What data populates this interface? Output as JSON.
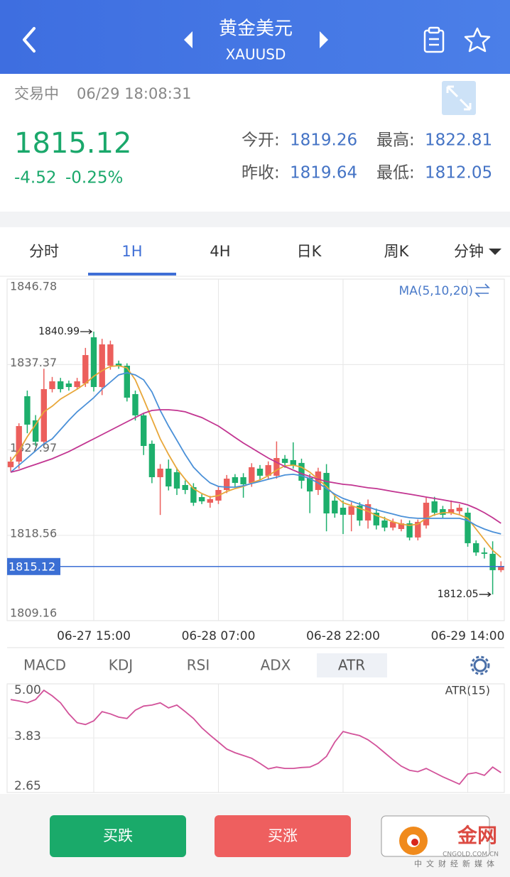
{
  "header": {
    "title": "黄金美元",
    "symbol": "XAUUSD"
  },
  "status": {
    "state": "交易中",
    "time": "06/29 18:08:31"
  },
  "quote": {
    "last": 1815.12,
    "change": -4.52,
    "change_pct": "-0.25%",
    "stats": [
      {
        "label": "今开:",
        "value": 1819.26
      },
      {
        "label": "最高:",
        "value": 1822.81
      },
      {
        "label": "昨收:",
        "value": 1819.64
      },
      {
        "label": "最低:",
        "value": 1812.05
      }
    ]
  },
  "tabs": {
    "items": [
      "分时",
      "1H",
      "4H",
      "日K",
      "周K",
      "分钟"
    ],
    "active": 1
  },
  "indicators": {
    "items": [
      "MACD",
      "KDJ",
      "RSI",
      "ADX",
      "ATR"
    ],
    "active": 4
  },
  "buttons": [
    "买跌",
    "买涨"
  ],
  "watermark": {
    "brand": "金网",
    "domain": "CNGOLD.COM.CN",
    "slogan": "中文财经新媒体"
  },
  "chart_data": [
    {
      "type": "candlestick",
      "ma_label": "MA(5,10,20)",
      "categories": [
        null,
        null,
        null,
        null,
        null,
        null,
        null,
        null,
        null,
        null,
        "06-27 15:00",
        null,
        null,
        null,
        null,
        null,
        null,
        null,
        null,
        null,
        null,
        null,
        null,
        null,
        null,
        "06-28 07:00",
        null,
        null,
        null,
        null,
        null,
        null,
        null,
        null,
        null,
        null,
        null,
        null,
        null,
        null,
        "06-28 22:00",
        null,
        null,
        null,
        null,
        null,
        null,
        null,
        null,
        null,
        null,
        null,
        null,
        null,
        null,
        "06-29 14:00",
        null,
        null,
        null,
        null
      ],
      "open": [
        1826.06,
        1826.68,
        1833.88,
        1831.22,
        1828.87,
        1834.66,
        1835.52,
        1835.28,
        1834.89,
        1835.28,
        1840.37,
        1834.89,
        1837.24,
        1837.47,
        1837.24,
        1834.11,
        1831.77,
        1828.64,
        1824.96,
        1825.9,
        1825.51,
        1824.1,
        1823.86,
        1822.77,
        1822.15,
        1822.38,
        1823.55,
        1824.96,
        1824.96,
        1824.33,
        1825.9,
        1825.12,
        1825.12,
        1826.99,
        1826.84,
        1826.53,
        1824.88,
        1823.55,
        1825.43,
        1822.38,
        1821.6,
        1820.82,
        1821.83,
        1820.19,
        1821.05,
        1820.19,
        1819.41,
        1819.25,
        1819.88,
        1818.32,
        1819.65,
        1822.3,
        1821.44,
        1821.05,
        1821.21,
        1821.05,
        1817.69,
        1816.67,
        1816.52,
        1814.72
      ],
      "high": [
        1827.2,
        1830.9,
        1834.5,
        1831.8,
        1836.9,
        1836.0,
        1835.9,
        1835.6,
        1835.9,
        1839.2,
        1840.99,
        1840.2,
        1840.0,
        1837.8,
        1837.5,
        1834.5,
        1832.0,
        1829.0,
        1826.4,
        1826.9,
        1826.0,
        1824.6,
        1824.3,
        1823.1,
        1822.9,
        1823.9,
        1825.2,
        1825.3,
        1825.4,
        1826.5,
        1826.3,
        1826.7,
        1828.9,
        1827.4,
        1828.8,
        1827.0,
        1825.3,
        1826.0,
        1826.4,
        1823.0,
        1822.4,
        1822.2,
        1822.2,
        1822.5,
        1821.5,
        1820.6,
        1820.4,
        1820.3,
        1820.2,
        1820.3,
        1822.7,
        1822.8,
        1821.8,
        1822.4,
        1822.0,
        1821.6,
        1818.0,
        1817.2,
        1817.9,
        1815.7
      ],
      "low": [
        1825.6,
        1825.9,
        1829.8,
        1828.4,
        1828.6,
        1834.3,
        1834.3,
        1834.5,
        1834.6,
        1834.9,
        1834.4,
        1834.0,
        1836.8,
        1836.9,
        1833.3,
        1831.2,
        1827.4,
        1824.3,
        1820.8,
        1823.5,
        1823.0,
        1823.1,
        1821.8,
        1822.0,
        1821.6,
        1822.0,
        1823.2,
        1823.9,
        1822.7,
        1823.9,
        1824.7,
        1824.8,
        1824.8,
        1826.0,
        1825.9,
        1823.7,
        1821.0,
        1823.0,
        1819.0,
        1820.5,
        1818.7,
        1819.0,
        1819.6,
        1819.3,
        1819.2,
        1819.0,
        1819.1,
        1819.0,
        1818.0,
        1818.0,
        1819.3,
        1820.7,
        1820.5,
        1820.8,
        1820.9,
        1817.3,
        1816.3,
        1816.0,
        1812.05,
        1814.5
      ],
      "close": [
        1826.68,
        1830.59,
        1830.75,
        1828.87,
        1834.66,
        1835.52,
        1834.66,
        1834.89,
        1835.52,
        1838.41,
        1834.89,
        1839.59,
        1839.59,
        1837.16,
        1833.72,
        1831.77,
        1828.4,
        1824.96,
        1825.9,
        1823.94,
        1823.71,
        1823.55,
        1822.15,
        1822.3,
        1822.54,
        1823.55,
        1824.8,
        1824.33,
        1824.18,
        1826.06,
        1825.12,
        1826.29,
        1827.07,
        1826.53,
        1826.29,
        1824.57,
        1823.39,
        1825.59,
        1820.97,
        1820.97,
        1820.82,
        1821.76,
        1820.19,
        1821.99,
        1819.65,
        1819.41,
        1820.04,
        1819.88,
        1818.32,
        1820.04,
        1822.15,
        1821.05,
        1820.82,
        1821.44,
        1821.6,
        1817.69,
        1816.67,
        1816.52,
        1814.72,
        1815.12
      ],
      "up_color": "#ec5f5c",
      "down_color": "#1daf6c",
      "price_line_color": "#3b6fd4",
      "series": [
        {
          "color": "#e8a73a",
          "values": [
            1826.68,
            1827.86,
            1829.42,
            1830.75,
            1832.16,
            1832.78,
            1833.56,
            1834.11,
            1834.66,
            1835.28,
            1836.07,
            1836.69,
            1837.16,
            1837.24,
            1837.0,
            1835.68,
            1833.56,
            1831.37,
            1829.18,
            1827.46,
            1825.9,
            1824.73,
            1823.71,
            1823.16,
            1822.77,
            1822.93,
            1823.39,
            1823.71,
            1823.94,
            1824.33,
            1824.65,
            1825.12,
            1825.74,
            1826.21,
            1826.29,
            1826.06,
            1825.51,
            1824.73,
            1823.94,
            1822.93,
            1822.15,
            1821.83,
            1821.52,
            1821.21,
            1820.74,
            1820.43,
            1820.04,
            1819.8,
            1819.65,
            1819.8,
            1820.43,
            1820.82,
            1821.05,
            1821.05,
            1820.82,
            1820.43,
            1819.25,
            1818.08,
            1816.91,
            1816.13
          ]
        },
        {
          "color": "#4a90d8",
          "values": [
            1825.51,
            1826.29,
            1827.07,
            1827.86,
            1828.64,
            1829.18,
            1830.2,
            1831.22,
            1832.16,
            1832.94,
            1833.72,
            1834.66,
            1835.44,
            1836.22,
            1836.46,
            1836.22,
            1835.68,
            1834.35,
            1832.31,
            1830.59,
            1829.03,
            1827.46,
            1826.06,
            1825.12,
            1824.33,
            1823.94,
            1823.86,
            1823.86,
            1824.02,
            1824.26,
            1824.49,
            1824.73,
            1824.96,
            1825.2,
            1825.28,
            1825.12,
            1824.8,
            1824.33,
            1823.71,
            1823.09,
            1822.62,
            1822.3,
            1821.99,
            1821.68,
            1821.37,
            1821.13,
            1820.9,
            1820.66,
            1820.5,
            1820.43,
            1820.43,
            1820.43,
            1820.43,
            1820.43,
            1820.43,
            1820.19,
            1819.65,
            1819.25,
            1818.94,
            1818.71
          ]
        },
        {
          "color": "#c23591",
          "values": [
            1825.51,
            1825.74,
            1826.06,
            1826.37,
            1826.68,
            1826.99,
            1827.39,
            1827.78,
            1828.25,
            1828.72,
            1829.18,
            1829.65,
            1830.12,
            1830.59,
            1831.06,
            1831.53,
            1832.0,
            1832.31,
            1832.39,
            1832.39,
            1832.31,
            1832.16,
            1831.84,
            1831.53,
            1831.06,
            1830.59,
            1829.97,
            1829.34,
            1828.72,
            1828.17,
            1827.62,
            1827.07,
            1826.6,
            1826.14,
            1825.74,
            1825.35,
            1825.04,
            1824.73,
            1824.49,
            1824.33,
            1824.18,
            1824.1,
            1823.94,
            1823.79,
            1823.71,
            1823.55,
            1823.39,
            1823.24,
            1823.09,
            1822.93,
            1822.77,
            1822.62,
            1822.46,
            1822.3,
            1822.15,
            1821.91,
            1821.52,
            1821.05,
            1820.5,
            1819.88
          ]
        }
      ],
      "ylim": [
        1809.16,
        1846.78
      ],
      "yticks": [
        1846.78,
        1837.37,
        1827.97,
        1818.56,
        1809.16
      ],
      "grid": true
    },
    {
      "type": "line",
      "label": "ATR(15)",
      "series": [
        {
          "color": "#d2529a",
          "values": [
            4.66,
            4.63,
            4.59,
            4.66,
            4.86,
            4.74,
            4.59,
            4.35,
            4.16,
            4.12,
            4.2,
            4.4,
            4.35,
            4.28,
            4.25,
            4.43,
            4.52,
            4.54,
            4.59,
            4.48,
            4.54,
            4.4,
            4.25,
            4.05,
            3.89,
            3.74,
            3.59,
            3.51,
            3.45,
            3.39,
            3.28,
            3.16,
            3.2,
            3.17,
            3.17,
            3.19,
            3.2,
            3.28,
            3.43,
            3.74,
            3.97,
            3.92,
            3.88,
            3.79,
            3.66,
            3.51,
            3.36,
            3.22,
            3.13,
            3.1,
            3.17,
            3.08,
            2.99,
            2.91,
            2.83,
            3.05,
            3.08,
            3.02,
            3.2,
            3.08
          ]
        }
      ],
      "ylim": [
        2.65,
        5
      ],
      "yticks": [
        {
          "value": 5,
          "label": "5.00"
        },
        3.83,
        2.65
      ],
      "grid": true
    }
  ]
}
